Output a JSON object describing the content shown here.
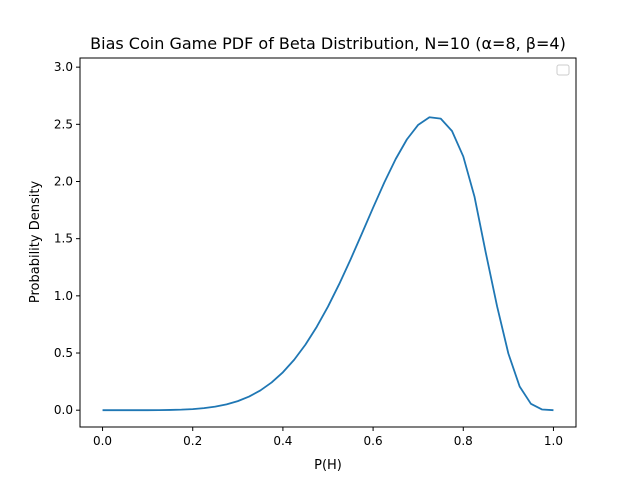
{
  "chart_data": {
    "type": "line",
    "title": "Bias Coin Game PDF of Beta Distribution, N=10 (α=8, β=4)",
    "xlabel": "P(H)",
    "ylabel": "Probability Density",
    "xlim": [
      -0.05,
      1.05
    ],
    "ylim": [
      -0.147,
      3.08
    ],
    "xticks": [
      0.0,
      0.2,
      0.4,
      0.6,
      0.8,
      1.0
    ],
    "xtick_labels": [
      "0.0",
      "0.2",
      "0.4",
      "0.6",
      "0.8",
      "1.0"
    ],
    "yticks": [
      0.0,
      0.5,
      1.0,
      1.5,
      2.0,
      2.5,
      3.0
    ],
    "ytick_labels": [
      "0.0",
      "0.5",
      "1.0",
      "1.5",
      "2.0",
      "2.5",
      "3.0"
    ],
    "grid": false,
    "legend": "top-right",
    "series": [
      {
        "color": "#1f77b4",
        "x": [
          0.0,
          0.025,
          0.05,
          0.075,
          0.1,
          0.125,
          0.15,
          0.175,
          0.2,
          0.225,
          0.25,
          0.275,
          0.3,
          0.325,
          0.35,
          0.375,
          0.4,
          0.425,
          0.45,
          0.475,
          0.5,
          0.525,
          0.55,
          0.575,
          0.6,
          0.625,
          0.65,
          0.675,
          0.7,
          0.725,
          0.75,
          0.775,
          0.8,
          0.825,
          0.85,
          0.875,
          0.9,
          0.925,
          0.95,
          0.975,
          1.0
        ],
        "y": [
          0.0,
          0.0,
          0.0,
          0.0,
          0.0002,
          0.0008,
          0.002,
          0.0047,
          0.0096,
          0.0178,
          0.0309,
          0.0507,
          0.0794,
          0.1193,
          0.1728,
          0.2428,
          0.3315,
          0.4412,
          0.5733,
          0.7287,
          0.9063,
          1.1039,
          1.318,
          1.5428,
          1.7708,
          1.9922,
          2.1957,
          2.3683,
          2.4954,
          2.5615,
          2.5496,
          2.4417,
          2.2192,
          1.8651,
          1.3756,
          0.9082,
          0.4958,
          0.2071,
          0.0557,
          0.0059,
          0.0
        ]
      }
    ]
  }
}
